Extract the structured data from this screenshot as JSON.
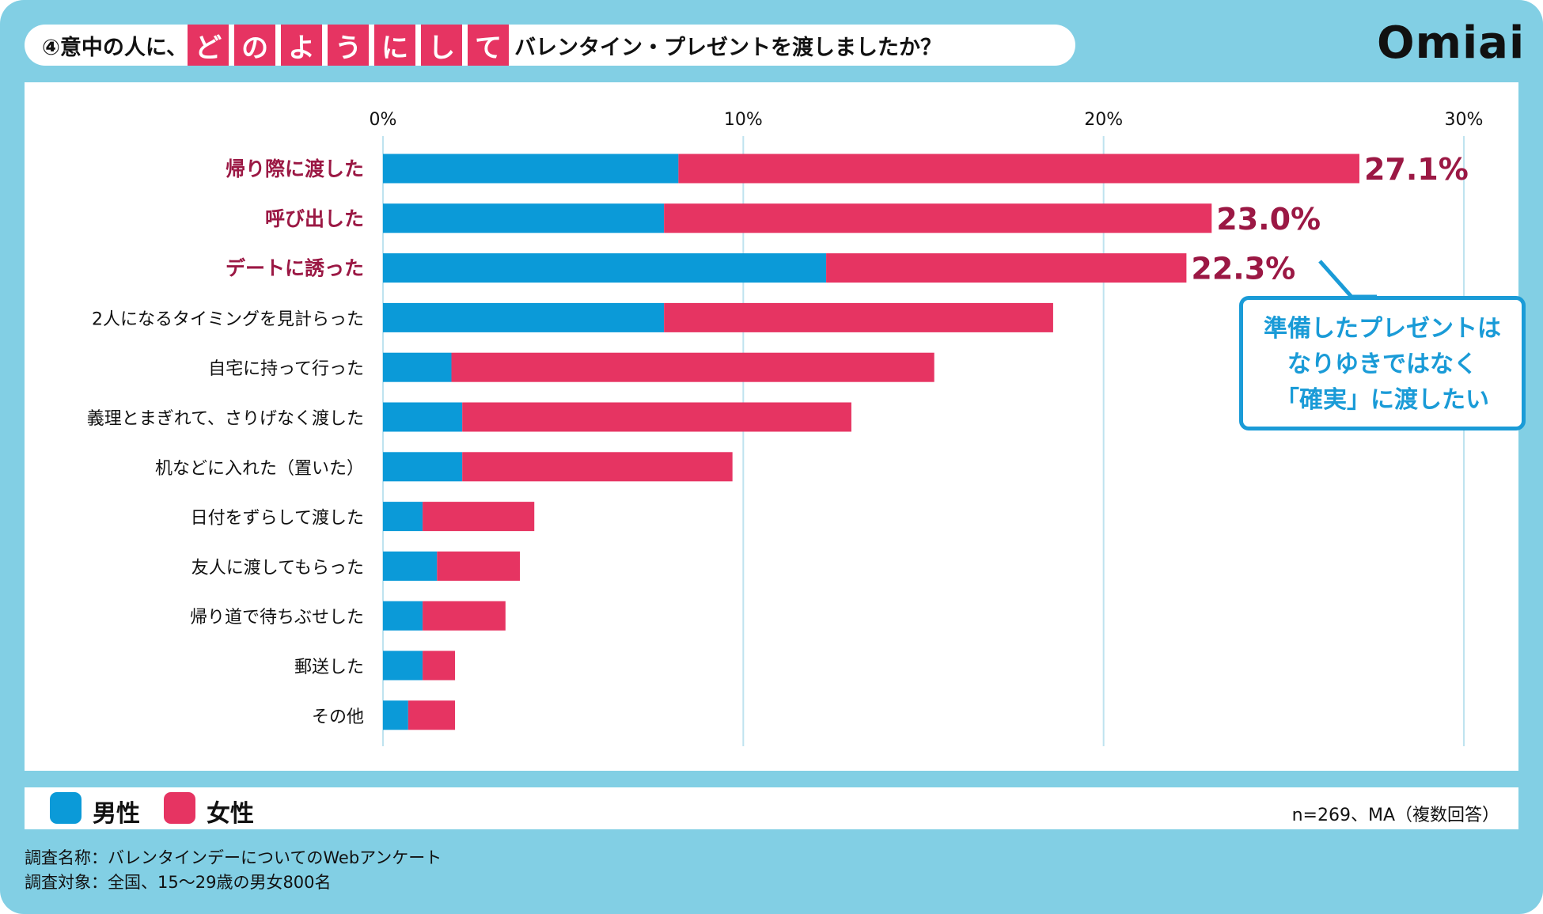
{
  "title": {
    "prefix": "④意中の人に、",
    "highlight": [
      "ど",
      "の",
      "よ",
      "う",
      "に",
      "し",
      "て"
    ],
    "suffix": "バレンタイン・プレゼントを渡しましたか？"
  },
  "logo": "Omiai",
  "callout": [
    "準備したプレゼントは",
    "なりゆきではなく",
    "「確実」に渡したい"
  ],
  "legend": {
    "male": "男性",
    "female": "女性",
    "note": "n=269、MA（複数回答）"
  },
  "footnotes": [
    "調査名称：バレンタインデーについてのWebアンケート",
    "調査対象：全国、15～29歳の男女800名"
  ],
  "colors": {
    "male": "#0b9ad8",
    "female": "#e63462",
    "highlight_text": "#9b1844",
    "background": "#82cfe4"
  },
  "chart_data": {
    "type": "bar",
    "stacked": true,
    "orientation": "horizontal",
    "xlim": [
      0,
      30
    ],
    "xticks": [
      "0%",
      "10%",
      "20%",
      "30%"
    ],
    "xtick_values": [
      0,
      10,
      20,
      30
    ],
    "categories": [
      "帰り際に渡した",
      "呼び出した",
      "デートに誘った",
      "2人になるタイミングを見計らった",
      "自宅に持って行った",
      "義理とまぎれて、さりげなく渡した",
      "机などに入れた（置いた）",
      "日付をずらして渡した",
      "友人に渡してもらった",
      "帰り道で待ちぶせした",
      "郵送した",
      "その他"
    ],
    "highlighted": [
      true,
      true,
      true,
      false,
      false,
      false,
      false,
      false,
      false,
      false,
      false,
      false
    ],
    "series": [
      {
        "name": "男性",
        "values": [
          8.2,
          7.8,
          12.3,
          7.8,
          1.9,
          2.2,
          2.2,
          1.1,
          1.5,
          1.1,
          1.1,
          0.7
        ]
      },
      {
        "name": "女性",
        "values": [
          18.9,
          15.2,
          10.0,
          10.8,
          13.4,
          10.8,
          7.5,
          3.1,
          2.3,
          2.3,
          0.9,
          1.3
        ]
      }
    ],
    "totals": [
      27.1,
      23.0,
      22.3,
      18.6,
      15.3,
      13.0,
      9.7,
      4.2,
      3.8,
      3.4,
      2.0,
      2.0
    ],
    "data_labels": [
      "27.1%",
      "23.0%",
      "22.3%"
    ]
  }
}
